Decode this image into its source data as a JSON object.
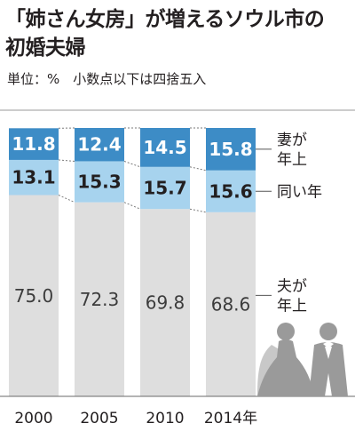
{
  "header": {
    "title_line1": "「姉さん女房」が増えるソウル市の",
    "title_line2": "初婚夫婦",
    "unit_note": "単位：%　小数点以下は四捨五入"
  },
  "chart_data": {
    "type": "bar",
    "stacked": true,
    "title": "「姉さん女房」が増えるソウル市の初婚夫婦",
    "unit": "%",
    "categories": [
      "2000",
      "2005",
      "2010",
      "2014年"
    ],
    "series": [
      {
        "name": "夫が年上",
        "values": [
          75.0,
          72.3,
          69.8,
          68.6
        ],
        "value_labels": [
          "75.0",
          "72.3",
          "69.8",
          "68.6"
        ],
        "color": "#dedede",
        "label_color": "#3c3c3c",
        "label_bold": false
      },
      {
        "name": "同い年",
        "values": [
          13.1,
          15.3,
          15.7,
          15.6
        ],
        "value_labels": [
          "13.1",
          "15.3",
          "15.7",
          "15.6"
        ],
        "color": "#a7d3ee",
        "label_color": "#231f20",
        "label_bold": true
      },
      {
        "name": "妻が年上",
        "values": [
          11.8,
          12.4,
          14.5,
          15.8
        ],
        "value_labels": [
          "11.8",
          "12.4",
          "14.5",
          "15.8"
        ],
        "color": "#3d8cc6",
        "label_color": "#ffffff",
        "label_bold": true
      }
    ],
    "legend": [
      {
        "key": "wife_older",
        "lines": [
          "妻が",
          "年上"
        ]
      },
      {
        "key": "same_age",
        "lines": [
          "同い年"
        ]
      },
      {
        "key": "husband_older",
        "lines": [
          "夫が",
          "年上"
        ]
      }
    ],
    "ylim": [
      0,
      100
    ],
    "grid": false,
    "legend_position": "right",
    "decoration_icon": "bride-and-groom-silhouette-icon"
  }
}
